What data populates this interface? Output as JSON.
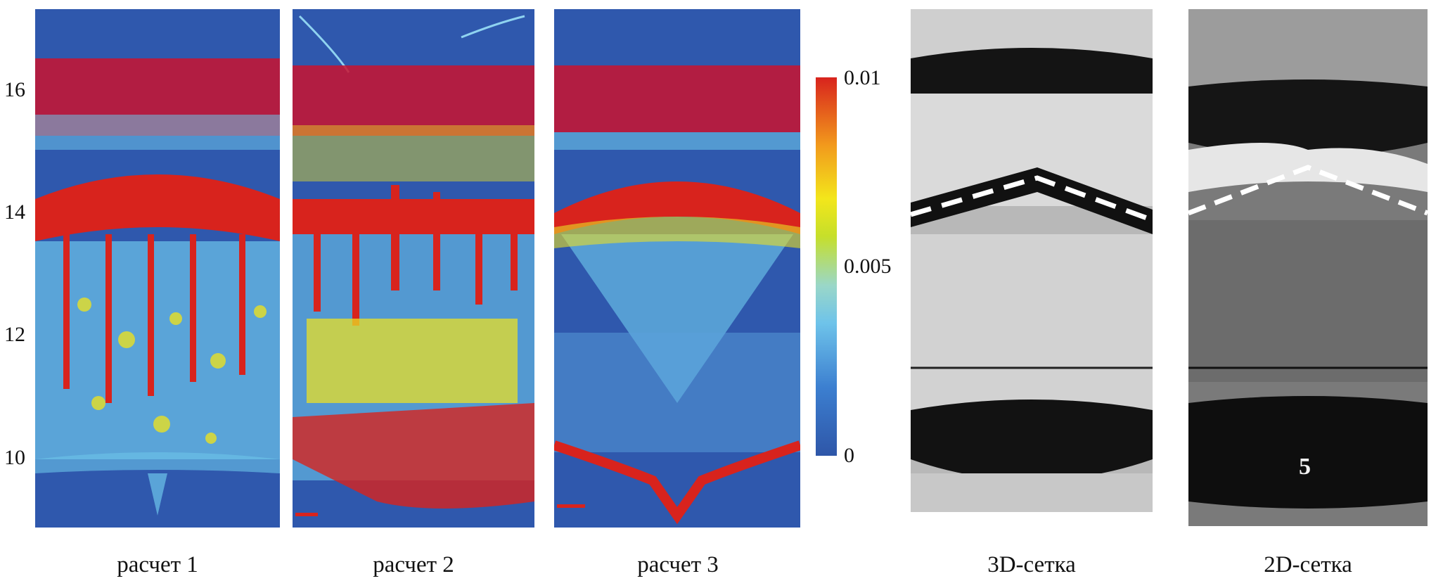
{
  "axis": {
    "y_ticks": [
      "16",
      "14",
      "12",
      "10"
    ]
  },
  "colorbar": {
    "max_label": "0.01",
    "mid_label": "0.005",
    "min_label": "0"
  },
  "panels": [
    {
      "caption": "расчет 1"
    },
    {
      "caption": "расчет 2"
    },
    {
      "caption": "расчет 3"
    },
    {
      "caption": "3D-сетка"
    },
    {
      "caption": "2D-сетка",
      "marker": "5"
    }
  ],
  "colors": {
    "deep_blue": "#2f58ad",
    "cyan": "#6cc4ea",
    "yellow": "#e9e024",
    "red": "#d8231d"
  }
}
